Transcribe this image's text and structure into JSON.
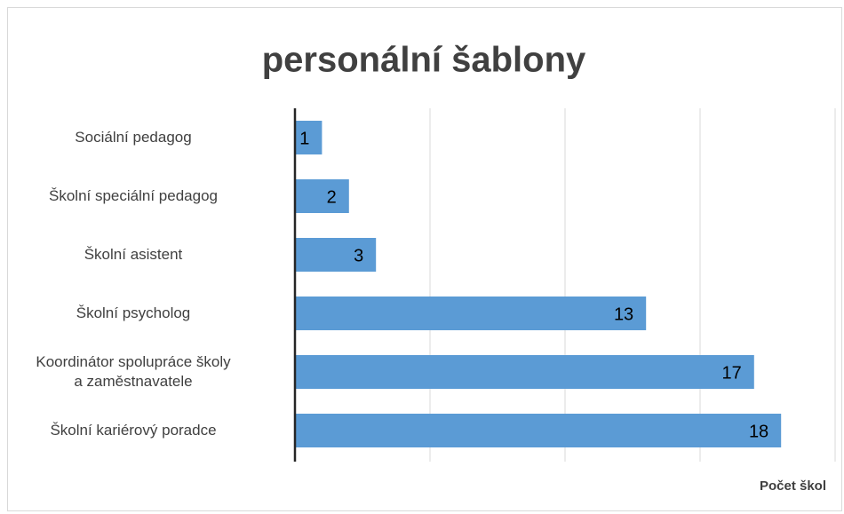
{
  "chart_data": {
    "type": "bar",
    "orientation": "horizontal",
    "title": "personální šablony",
    "categories": [
      "Sociální pedagog",
      "Školní speciální pedagog",
      "Školní asistent",
      "Školní psycholog",
      "Koordinátor spolupráce školy\na zaměstnavatele",
      "Školní kariérový poradce"
    ],
    "values": [
      1,
      2,
      3,
      13,
      17,
      18
    ],
    "color": "#5b9bd5",
    "xlabel": "Počet škol",
    "xlim": [
      0,
      20
    ],
    "xticks": [
      0,
      5,
      10,
      15,
      20
    ],
    "grid": true
  }
}
